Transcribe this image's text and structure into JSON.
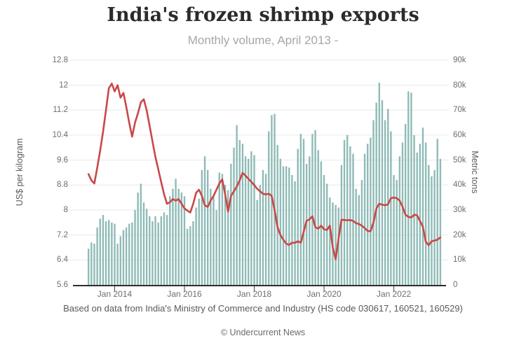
{
  "header": {
    "title": "India's frozen shrimp exports",
    "subtitle": "Monthly volume, April 2013 -"
  },
  "footer": {
    "source": "Based on data from India's Ministry of Commerce and Industry (HS code 030617, 160521, 160529)",
    "credit": "© Undercurrent News"
  },
  "chart_data": {
    "type": "bar",
    "title": "India's frozen shrimp exports",
    "subtitle": "Monthly volume, April 2013 -",
    "grid": "horizontal",
    "legend": "none",
    "months": [
      "2013-04",
      "2013-05",
      "2013-06",
      "2013-07",
      "2013-08",
      "2013-09",
      "2013-10",
      "2013-11",
      "2013-12",
      "2014-01",
      "2014-02",
      "2014-03",
      "2014-04",
      "2014-05",
      "2014-06",
      "2014-07",
      "2014-08",
      "2014-09",
      "2014-10",
      "2014-11",
      "2014-12",
      "2015-01",
      "2015-02",
      "2015-03",
      "2015-04",
      "2015-05",
      "2015-06",
      "2015-07",
      "2015-08",
      "2015-09",
      "2015-10",
      "2015-11",
      "2015-12",
      "2016-01",
      "2016-02",
      "2016-03",
      "2016-04",
      "2016-05",
      "2016-06",
      "2016-07",
      "2016-08",
      "2016-09",
      "2016-10",
      "2016-11",
      "2016-12",
      "2017-01",
      "2017-02",
      "2017-03",
      "2017-04",
      "2017-05",
      "2017-06",
      "2017-07",
      "2017-08",
      "2017-09",
      "2017-10",
      "2017-11",
      "2017-12",
      "2018-01",
      "2018-02",
      "2018-03",
      "2018-04",
      "2018-05",
      "2018-06",
      "2018-07",
      "2018-08",
      "2018-09",
      "2018-10",
      "2018-11",
      "2018-12",
      "2019-01",
      "2019-02",
      "2019-03",
      "2019-04",
      "2019-05",
      "2019-06",
      "2019-07",
      "2019-08",
      "2019-09",
      "2019-10",
      "2019-11",
      "2019-12",
      "2020-01",
      "2020-02",
      "2020-03",
      "2020-04",
      "2020-05",
      "2020-06",
      "2020-07",
      "2020-08",
      "2020-09",
      "2020-10",
      "2020-11",
      "2020-12",
      "2021-01",
      "2021-02",
      "2021-03",
      "2021-04",
      "2021-05",
      "2021-06",
      "2021-07",
      "2021-08",
      "2021-09",
      "2021-10",
      "2021-11",
      "2021-12",
      "2022-01",
      "2022-02",
      "2022-03",
      "2022-04",
      "2022-05",
      "2022-06",
      "2022-07",
      "2022-08",
      "2022-09",
      "2022-10",
      "2022-11",
      "2022-12",
      "2023-01",
      "2023-02",
      "2023-03",
      "2023-04",
      "2023-05"
    ],
    "series": [
      {
        "name": "Export volume",
        "type": "bar",
        "axis": "right",
        "unit": "metric tons",
        "color": "#8fbbb7",
        "values": [
          14500,
          17000,
          16500,
          23000,
          26500,
          28000,
          25500,
          26000,
          25000,
          24500,
          16500,
          19500,
          22000,
          23000,
          24500,
          25000,
          30000,
          37000,
          40500,
          33000,
          30500,
          27500,
          25500,
          27500,
          25000,
          27500,
          29000,
          28000,
          35500,
          38500,
          42500,
          38500,
          37000,
          35500,
          22500,
          23500,
          25500,
          31000,
          34500,
          46000,
          51500,
          46000,
          38500,
          36000,
          30000,
          45000,
          44500,
          40000,
          38000,
          48500,
          55000,
          64000,
          58000,
          56500,
          51500,
          50500,
          53500,
          52000,
          34000,
          40000,
          46000,
          44500,
          61500,
          68000,
          68500,
          56000,
          50500,
          47500,
          47500,
          47000,
          44000,
          41500,
          54500,
          60500,
          58500,
          48500,
          51500,
          60500,
          62000,
          54000,
          49500,
          44000,
          40500,
          35000,
          33000,
          32000,
          31000,
          48000,
          58000,
          60000,
          55500,
          52500,
          38500,
          36000,
          42000,
          52500,
          56500,
          59000,
          66000,
          73000,
          81000,
          74000,
          66000,
          70500,
          61500,
          44000,
          42000,
          51500,
          57000,
          64500,
          77500,
          77000,
          60000,
          53000,
          56500,
          63000,
          57000,
          48000,
          43500,
          46000,
          58500,
          50500
        ]
      },
      {
        "name": "Export price",
        "type": "line",
        "axis": "left",
        "unit": "US$ per kilogram",
        "color": "#c94846",
        "values": [
          9.15,
          8.95,
          8.85,
          9.35,
          9.9,
          10.5,
          11.2,
          11.9,
          12.05,
          11.8,
          12.0,
          11.6,
          11.75,
          11.3,
          10.8,
          10.35,
          10.8,
          11.1,
          11.45,
          11.55,
          11.2,
          10.7,
          10.2,
          9.7,
          9.3,
          8.9,
          8.5,
          8.2,
          8.25,
          8.35,
          8.3,
          8.35,
          8.2,
          8.05,
          7.98,
          7.92,
          8.2,
          8.55,
          8.65,
          8.45,
          8.15,
          8.1,
          8.3,
          8.45,
          8.65,
          8.85,
          8.98,
          8.5,
          7.95,
          8.45,
          8.6,
          8.75,
          8.95,
          9.19,
          9.1,
          9.0,
          8.9,
          8.8,
          8.68,
          8.6,
          8.52,
          8.5,
          8.52,
          8.45,
          8.0,
          7.45,
          7.2,
          7.05,
          6.92,
          6.88,
          6.95,
          6.95,
          7.0,
          6.95,
          7.3,
          7.65,
          7.7,
          7.8,
          7.45,
          7.4,
          7.5,
          7.38,
          7.36,
          7.5,
          6.8,
          6.42,
          7.1,
          7.69,
          7.68,
          7.67,
          7.68,
          7.65,
          7.58,
          7.55,
          7.5,
          7.42,
          7.33,
          7.32,
          7.6,
          8.05,
          8.2,
          8.17,
          8.15,
          8.18,
          8.38,
          8.4,
          8.38,
          8.3,
          8.1,
          7.85,
          7.78,
          7.76,
          7.85,
          7.83,
          7.65,
          7.46,
          6.98,
          6.87,
          7.0,
          7.02,
          7.05,
          7.12
        ]
      }
    ],
    "left_axis": {
      "label": "US$ per kilogram",
      "min": 5.6,
      "max": 12.8,
      "ticks": [
        "12.8",
        "12",
        "11.2",
        "10.4",
        "9.6",
        "8.8",
        "8",
        "7.2",
        "6.4",
        "5.6"
      ]
    },
    "right_axis": {
      "label": "Metric tons",
      "min": 0,
      "max": 90000,
      "ticks": [
        "90k",
        "80k",
        "70k",
        "60k",
        "50k",
        "40k",
        "30k",
        "20k",
        "10k",
        "0"
      ]
    },
    "x_ticks": [
      {
        "label": "Jan 2014",
        "month": "2014-01"
      },
      {
        "label": "Jan 2016",
        "month": "2016-01"
      },
      {
        "label": "Jan 2018",
        "month": "2018-01"
      },
      {
        "label": "Jan 2020",
        "month": "2020-01"
      },
      {
        "label": "Jan 2022",
        "month": "2022-01"
      }
    ],
    "colors": {
      "bar": "#8fbbb7",
      "line": "#c94846",
      "gridline": "#e8e8e8",
      "axis_line": "#2e2e2e",
      "title_text": "#2b2b2b",
      "subtitle_text": "#a6a6a6",
      "tick_text": "#6e6e6e"
    }
  }
}
